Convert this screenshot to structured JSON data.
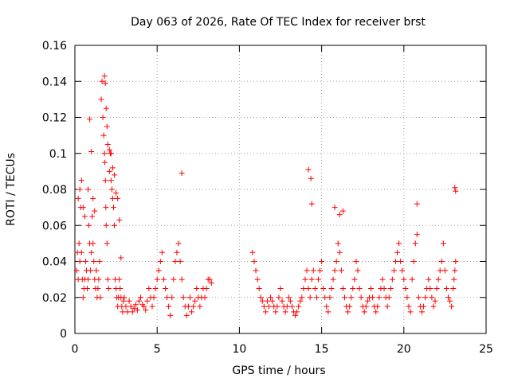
{
  "chart_data": {
    "type": "scatter",
    "title": "Day 063 of 2026, Rate Of TEC Index for receiver brst",
    "xlabel": "GPS time / hours",
    "ylabel": "ROTI / TECUs",
    "xlim": [
      0,
      25
    ],
    "ylim": [
      0,
      0.16
    ],
    "xticks": [
      0,
      5,
      10,
      15,
      20,
      25
    ],
    "xtick_labels": [
      "0",
      "5",
      "10",
      "15",
      "20",
      "25"
    ],
    "yticks": [
      0,
      0.02,
      0.04,
      0.06,
      0.08,
      0.1,
      0.12,
      0.14,
      0.16
    ],
    "ytick_labels": [
      "0",
      "0.02",
      "0.04",
      "0.06",
      "0.08",
      "0.1",
      "0.12",
      "0.14",
      "0.16"
    ],
    "grid": true,
    "marker": "+",
    "color": "#ff0000",
    "series": [
      {
        "x": [
          0.1,
          0.15,
          0.2,
          0.25,
          0.3,
          0.35,
          0.4,
          0.45,
          0.5,
          0.55,
          0.6,
          0.65,
          0.7,
          0.75,
          0.8,
          0.85,
          0.9,
          0.95,
          1.0,
          1.05,
          1.1,
          1.15,
          1.2,
          1.25,
          1.3,
          1.35,
          1.4,
          1.45,
          1.5,
          1.55,
          1.6,
          1.65,
          1.7,
          1.75,
          1.8,
          1.82,
          1.85,
          1.88,
          1.9,
          1.95,
          2.0,
          2.05,
          2.1,
          2.15,
          2.2,
          2.25,
          2.3,
          2.35,
          2.4,
          2.45,
          2.5,
          2.55,
          2.6,
          2.65,
          2.7,
          2.75,
          2.8,
          2.85,
          2.9,
          2.95,
          3.0,
          3.1,
          3.2,
          3.3,
          3.4,
          3.5,
          3.6,
          3.7,
          3.8,
          3.9,
          4.0,
          4.1,
          4.2,
          4.3,
          4.4,
          4.5,
          4.6,
          4.7,
          4.8,
          4.9,
          5.0,
          5.1,
          5.2,
          5.3,
          5.4,
          5.5,
          5.6,
          5.7,
          5.8,
          5.9,
          6.0,
          6.1,
          6.2,
          6.3,
          6.4,
          6.5,
          6.6,
          6.7,
          6.8,
          6.9,
          7.0,
          7.1,
          7.2,
          7.3,
          7.4,
          7.5,
          7.6,
          7.7,
          7.8,
          7.9,
          8.0,
          8.1,
          8.2,
          8.3,
          10.8,
          10.9,
          11.0,
          11.1,
          11.2,
          11.3,
          11.4,
          11.5,
          11.6,
          11.7,
          11.8,
          11.9,
          12.0,
          12.1,
          12.2,
          12.3,
          12.4,
          12.5,
          12.6,
          12.7,
          12.8,
          12.9,
          13.0,
          13.1,
          13.2,
          13.3,
          13.4,
          13.5,
          13.6,
          13.7,
          13.8,
          13.9,
          14.0,
          14.1,
          14.2,
          14.3,
          14.4,
          14.5,
          14.6,
          14.7,
          14.8,
          14.9,
          15.0,
          15.1,
          15.2,
          15.3,
          15.4,
          15.5,
          15.6,
          15.7,
          15.8,
          15.9,
          16.0,
          16.1,
          16.2,
          16.3,
          16.4,
          16.5,
          16.6,
          16.7,
          16.8,
          16.9,
          17.0,
          17.1,
          17.2,
          17.3,
          17.4,
          17.5,
          17.6,
          17.7,
          17.8,
          17.9,
          18.0,
          18.1,
          18.2,
          18.3,
          18.4,
          18.5,
          18.6,
          18.7,
          18.8,
          18.9,
          19.0,
          19.1,
          19.2,
          19.3,
          19.4,
          19.5,
          19.6,
          19.7,
          19.8,
          19.9,
          20.0,
          20.1,
          20.2,
          20.3,
          20.4,
          20.5,
          20.6,
          20.7,
          20.8,
          20.9,
          21.0,
          21.1,
          21.2,
          21.3,
          21.4,
          21.5,
          21.6,
          21.7,
          21.8,
          21.9,
          22.0,
          22.1,
          22.2,
          22.3,
          22.4,
          22.5,
          22.6,
          22.7,
          22.8,
          22.9,
          23.0,
          23.05,
          23.1,
          23.15,
          0.2,
          0.3,
          0.4,
          0.5,
          0.6,
          0.8,
          0.9,
          1.0,
          1.1,
          1.2,
          1.8,
          1.85,
          1.9,
          1.95,
          2.0,
          2.1,
          2.2,
          2.3,
          2.4,
          2.5,
          2.6,
          2.7,
          2.8,
          6.5,
          14.2,
          14.35,
          14.4,
          15.8,
          16.1,
          16.3,
          20.8,
          23.1,
          23.15
        ],
        "y": [
          0.035,
          0.045,
          0.03,
          0.05,
          0.04,
          0.07,
          0.045,
          0.03,
          0.02,
          0.025,
          0.03,
          0.04,
          0.035,
          0.025,
          0.03,
          0.06,
          0.05,
          0.035,
          0.045,
          0.065,
          0.05,
          0.04,
          0.03,
          0.025,
          0.035,
          0.02,
          0.025,
          0.03,
          0.04,
          0.02,
          0.13,
          0.14,
          0.12,
          0.11,
          0.1,
          0.095,
          0.085,
          0.07,
          0.06,
          0.05,
          0.03,
          0.025,
          0.09,
          0.1,
          0.085,
          0.08,
          0.075,
          0.07,
          0.06,
          0.03,
          0.025,
          0.02,
          0.015,
          0.02,
          0.03,
          0.025,
          0.02,
          0.015,
          0.012,
          0.018,
          0.02,
          0.015,
          0.012,
          0.018,
          0.015,
          0.012,
          0.014,
          0.016,
          0.013,
          0.018,
          0.02,
          0.016,
          0.015,
          0.013,
          0.018,
          0.025,
          0.02,
          0.015,
          0.02,
          0.025,
          0.03,
          0.035,
          0.04,
          0.045,
          0.03,
          0.025,
          0.02,
          0.015,
          0.01,
          0.02,
          0.03,
          0.04,
          0.045,
          0.05,
          0.04,
          0.03,
          0.02,
          0.015,
          0.01,
          0.015,
          0.02,
          0.012,
          0.015,
          0.018,
          0.025,
          0.02,
          0.015,
          0.02,
          0.025,
          0.02,
          0.025,
          0.03,
          0.03,
          0.028,
          0.045,
          0.04,
          0.035,
          0.03,
          0.025,
          0.02,
          0.018,
          0.015,
          0.012,
          0.018,
          0.015,
          0.02,
          0.018,
          0.015,
          0.012,
          0.015,
          0.02,
          0.025,
          0.018,
          0.015,
          0.012,
          0.015,
          0.02,
          0.018,
          0.015,
          0.012,
          0.01,
          0.012,
          0.015,
          0.018,
          0.02,
          0.025,
          0.03,
          0.035,
          0.025,
          0.02,
          0.03,
          0.035,
          0.025,
          0.02,
          0.03,
          0.035,
          0.04,
          0.025,
          0.02,
          0.015,
          0.012,
          0.02,
          0.025,
          0.03,
          0.035,
          0.04,
          0.05,
          0.045,
          0.035,
          0.025,
          0.02,
          0.015,
          0.012,
          0.015,
          0.02,
          0.025,
          0.03,
          0.04,
          0.035,
          0.025,
          0.02,
          0.015,
          0.012,
          0.015,
          0.018,
          0.02,
          0.025,
          0.02,
          0.015,
          0.012,
          0.015,
          0.02,
          0.025,
          0.03,
          0.025,
          0.02,
          0.015,
          0.02,
          0.025,
          0.03,
          0.035,
          0.04,
          0.045,
          0.05,
          0.04,
          0.035,
          0.03,
          0.025,
          0.02,
          0.015,
          0.012,
          0.03,
          0.04,
          0.05,
          0.055,
          0.02,
          0.015,
          0.012,
          0.015,
          0.02,
          0.025,
          0.03,
          0.025,
          0.02,
          0.015,
          0.018,
          0.025,
          0.03,
          0.035,
          0.04,
          0.05,
          0.035,
          0.025,
          0.02,
          0.018,
          0.015,
          0.025,
          0.03,
          0.035,
          0.04,
          0.075,
          0.08,
          0.085,
          0.07,
          0.065,
          0.08,
          0.119,
          0.101,
          0.075,
          0.068,
          0.143,
          0.139,
          0.125,
          0.115,
          0.105,
          0.102,
          0.1,
          0.092,
          0.088,
          0.078,
          0.075,
          0.063,
          0.042,
          0.089,
          0.091,
          0.086,
          0.072,
          0.07,
          0.066,
          0.068,
          0.072,
          0.081,
          0.079
        ]
      }
    ]
  }
}
